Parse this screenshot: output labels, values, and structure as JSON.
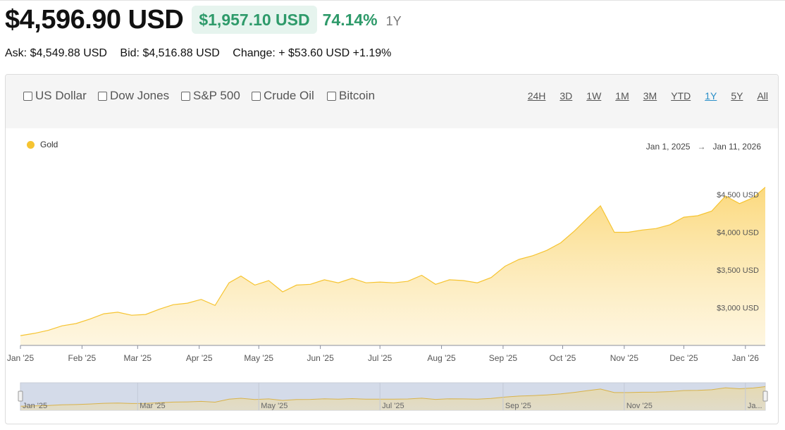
{
  "header": {
    "price": "$4,596.90 USD",
    "change_amount": "$1,957.10 USD",
    "change_percent": "74.14%",
    "period": "1Y"
  },
  "quote": {
    "ask": "Ask: $4,549.88 USD",
    "bid": "Bid: $4,516.88 USD",
    "change": "Change: + $53.60 USD +1.19%"
  },
  "compare": [
    {
      "label": "US Dollar",
      "checked": false
    },
    {
      "label": "Dow Jones",
      "checked": false
    },
    {
      "label": "S&P 500",
      "checked": false
    },
    {
      "label": "Crude Oil",
      "checked": false
    },
    {
      "label": "Bitcoin",
      "checked": false
    }
  ],
  "ranges": [
    {
      "label": "24H",
      "active": false
    },
    {
      "label": "3D",
      "active": false
    },
    {
      "label": "1W",
      "active": false
    },
    {
      "label": "1M",
      "active": false
    },
    {
      "label": "3M",
      "active": false
    },
    {
      "label": "YTD",
      "active": false
    },
    {
      "label": "1Y",
      "active": true
    },
    {
      "label": "5Y",
      "active": false
    },
    {
      "label": "All",
      "active": false
    }
  ],
  "legend": {
    "label": "Gold",
    "color": "#f6c431"
  },
  "date_range": {
    "start": "Jan 1, 2025",
    "arrow": "→",
    "end": "Jan 11, 2026"
  },
  "colors": {
    "accent_green": "#2e9a6a",
    "active_range": "#2a8fc8",
    "gold": "#f6c431"
  },
  "chart_data": {
    "type": "area",
    "series": [
      {
        "name": "Gold",
        "color": "#f6c431"
      }
    ],
    "x": [
      "2025-01-01",
      "2025-01-08",
      "2025-01-15",
      "2025-01-22",
      "2025-01-29",
      "2025-02-05",
      "2025-02-12",
      "2025-02-19",
      "2025-02-26",
      "2025-03-05",
      "2025-03-12",
      "2025-03-19",
      "2025-03-26",
      "2025-04-02",
      "2025-04-09",
      "2025-04-16",
      "2025-04-22",
      "2025-04-29",
      "2025-05-06",
      "2025-05-13",
      "2025-05-20",
      "2025-05-27",
      "2025-06-03",
      "2025-06-10",
      "2025-06-17",
      "2025-06-24",
      "2025-07-01",
      "2025-07-08",
      "2025-07-15",
      "2025-07-22",
      "2025-07-29",
      "2025-08-05",
      "2025-08-12",
      "2025-08-19",
      "2025-08-26",
      "2025-09-02",
      "2025-09-09",
      "2025-09-16",
      "2025-09-23",
      "2025-09-30",
      "2025-10-07",
      "2025-10-14",
      "2025-10-20",
      "2025-10-27",
      "2025-11-03",
      "2025-11-10",
      "2025-11-17",
      "2025-11-24",
      "2025-12-01",
      "2025-12-08",
      "2025-12-15",
      "2025-12-22",
      "2025-12-29",
      "2026-01-05",
      "2026-01-11"
    ],
    "values": [
      2630,
      2660,
      2700,
      2760,
      2790,
      2850,
      2920,
      2940,
      2900,
      2910,
      2980,
      3040,
      3060,
      3110,
      3030,
      3330,
      3420,
      3300,
      3360,
      3210,
      3300,
      3310,
      3370,
      3330,
      3390,
      3330,
      3340,
      3330,
      3350,
      3430,
      3310,
      3370,
      3360,
      3330,
      3400,
      3550,
      3640,
      3690,
      3760,
      3860,
      4020,
      4200,
      4350,
      4000,
      4000,
      4030,
      4050,
      4100,
      4200,
      4220,
      4280,
      4480,
      4380,
      4460,
      4597
    ],
    "y_ticks": [
      "$3,000 USD",
      "$3,500 USD",
      "$4,000 USD",
      "$4,500 USD"
    ],
    "y_tick_values": [
      3000,
      3500,
      4000,
      4500
    ],
    "x_tick_labels": [
      "Jan '25",
      "Feb '25",
      "Mar '25",
      "Apr '25",
      "May '25",
      "Jun '25",
      "Jul '25",
      "Aug '25",
      "Sep '25",
      "Oct '25",
      "Nov '25",
      "Dec '25",
      "Jan '26"
    ],
    "x_tick_dates": [
      "2025-01-01",
      "2025-02-01",
      "2025-03-01",
      "2025-04-01",
      "2025-05-01",
      "2025-06-01",
      "2025-07-01",
      "2025-08-01",
      "2025-09-01",
      "2025-10-01",
      "2025-11-01",
      "2025-12-01",
      "2026-01-01"
    ],
    "ylim": [
      2500,
      4700
    ],
    "grid": false,
    "navigator_labels": [
      "Jan '25",
      "Mar '25",
      "May '25",
      "Jul '25",
      "Sep '25",
      "Nov '25",
      "Ja..."
    ],
    "navigator_dates": [
      "2025-01-01",
      "2025-03-01",
      "2025-05-01",
      "2025-07-01",
      "2025-09-01",
      "2025-11-01",
      "2026-01-01"
    ]
  }
}
